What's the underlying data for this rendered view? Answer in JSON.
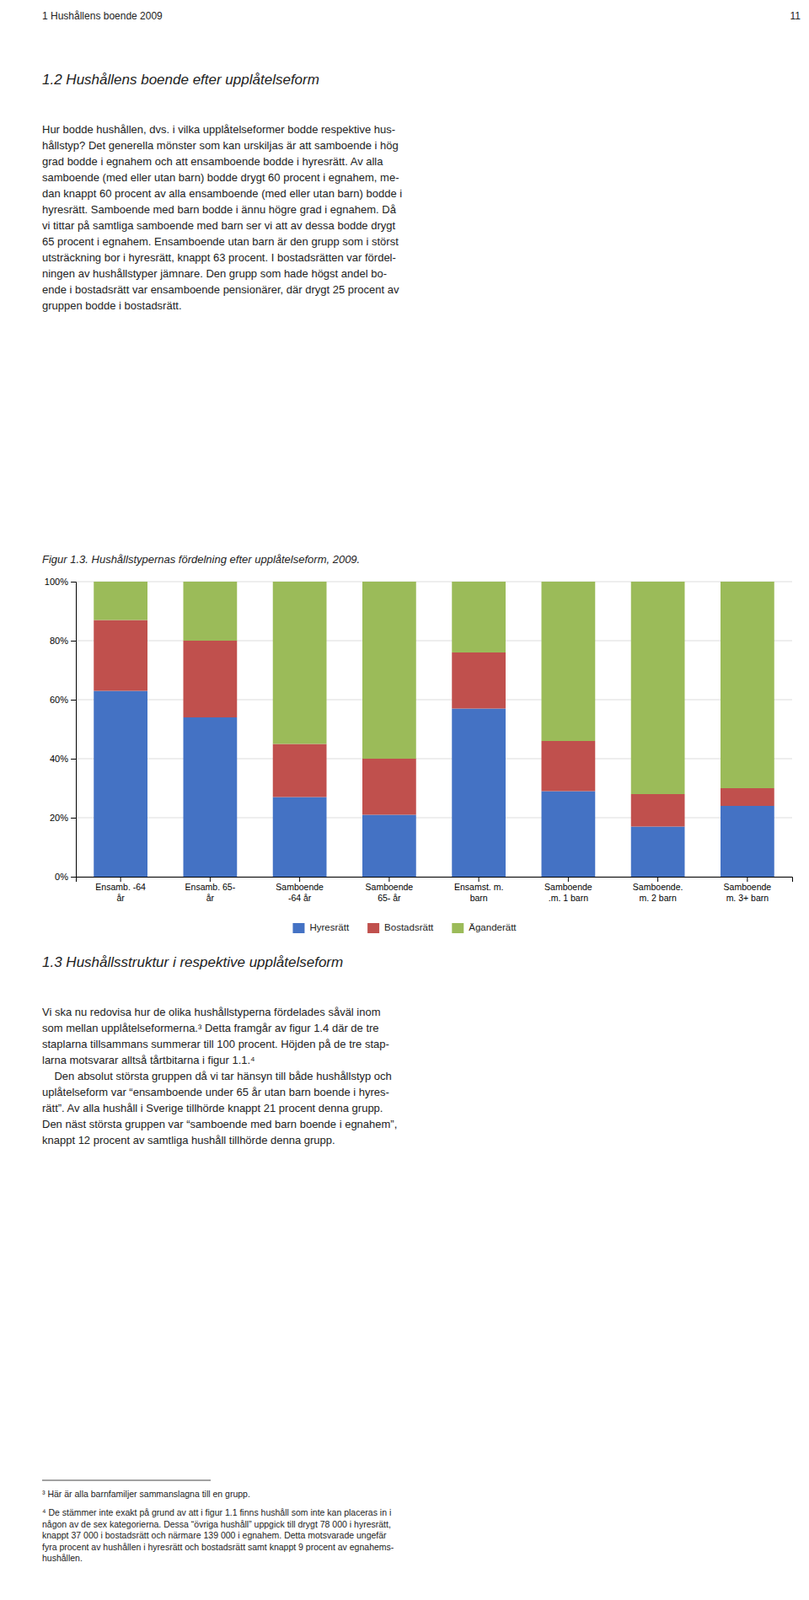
{
  "page_text": {
    "header_left": "1 Hushållens boende 2009",
    "header_right": "11",
    "sec12_heading": "1.2 Hushållens boende efter upplåtelseform",
    "sec12_body": "Hur bodde hushållen, dvs. i vilka upplåtelseformer bodde respektive hus-\nhållstyp? Det generella mönster som kan urskiljas är att samboende i hög\ngrad bodde i egnahem och att ensamboende bodde i hyresrätt. Av alla\nsamboende (med eller utan barn) bodde drygt 60 procent i egnahem, me-\ndan knappt 60 procent av alla ensamboende (med eller utan barn) bodde i\nhyresrätt. Samboende med barn bodde i ännu högre grad i egnahem. Då\nvi tittar på samtliga samboende med barn ser vi att av dessa bodde drygt\n65 procent i egnahem. Ensamboende utan barn är den grupp som i störst\nutsträckning bor i hyresrätt, knappt 63 procent. I bostadsrätten var fördel-\nningen av hushållstyper jämnare. Den grupp som hade högst andel bo-\nende i bostadsrätt var ensamboende pensionärer, där drygt 25 procent av\ngruppen bodde i bostadsrätt.",
    "sec13_heading": "1.3 Hushållsstruktur i respektive upplåtelseform",
    "sec13_body": "Vi ska nu redovisa hur de olika hushållstyperna fördelades såväl inom\nsom mellan upplåtelseformerna.³ Detta framgår av figur 1.4 där de tre\nstaplarna tillsammans summerar till 100 procent. Höjden på de tre stap-\nlarna motsvarar alltså tårtbitarna i figur 1.1.⁴\n    Den absolut största gruppen då vi tar hänsyn till både hushållstyp och\nuplåtelseform var “ensamboende under 65 år utan barn boende i hyres-\nrätt”. Av alla hushåll i Sverige tillhörde knappt 21 procent denna grupp.\nDen näst största gruppen var “samboende med barn boende i egnahem”,\nknappt 12 procent av samtliga hushåll tillhörde denna grupp.",
    "fn1": "³ Här är alla barnfamiljer sammanslagna till en grupp.",
    "fn2": "⁴ De stämmer inte exakt på grund av att i figur 1.1 finns hushåll som inte kan placeras in i\nnågon av de sex kategorierna. Dessa “övriga hushåll” uppgick till drygt 78 000 i hyresrätt,\nknappt 37 000 i bostadsrätt och närmare 139 000 i egnahem. Detta motsvarade ungefär\nfyra procent av hushållen i hyresrätt och bostadsrätt samt knappt 9 procent av egnahems-\nhushållen."
  },
  "chart_data": {
    "type": "bar",
    "title": "Figur 1.3. Hushållstypernas fördelning efter upplåtelseform, 2009.",
    "stacked": true,
    "categories": [
      "Ensamb. -64\når",
      "Ensamb. 65-\når",
      "Samboende\n-64 år",
      "Samboende\n65- år",
      "Ensamst. m.\nbarn",
      "Samboende\n.m. 1 barn",
      "Samboende.\nm. 2 barn",
      "Samboende\nm. 3+ barn"
    ],
    "series": [
      {
        "name": "Hyresrätt",
        "color": "#4472C4",
        "values": [
          63,
          54,
          27,
          21,
          57,
          29,
          17,
          24
        ]
      },
      {
        "name": "Bostadsrätt",
        "color": "#C0504D",
        "values": [
          24,
          26,
          18,
          19,
          19,
          17,
          11,
          6
        ]
      },
      {
        "name": "Äganderätt",
        "color": "#9BBB59",
        "values": [
          13,
          20,
          55,
          60,
          24,
          54,
          72,
          70
        ]
      }
    ],
    "ylim": [
      0,
      100
    ],
    "yticks": [
      {
        "value": 0,
        "label": "0%"
      },
      {
        "value": 20,
        "label": "20%"
      },
      {
        "value": 40,
        "label": "40%"
      },
      {
        "value": 60,
        "label": "60%"
      },
      {
        "value": 80,
        "label": "80%"
      },
      {
        "value": 100,
        "label": "100%"
      }
    ],
    "grid": true,
    "legend": "bottom"
  }
}
